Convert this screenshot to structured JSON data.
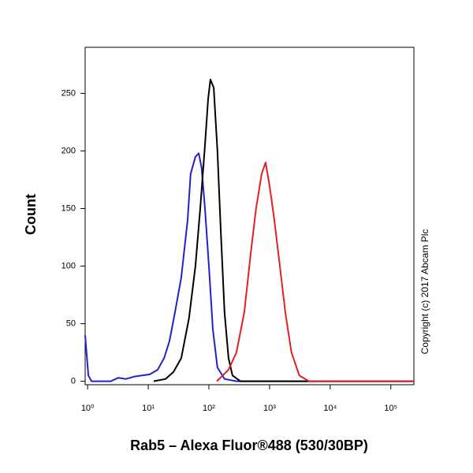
{
  "chart_data": {
    "type": "line",
    "x_label": "Rab5 – Alexa Fluor®488 (530/30BP)",
    "y_label": "Count",
    "copyright": "Copyright (c) 2017 Abcam Plc",
    "x_log": true,
    "xlim": [
      0.91,
      240000
    ],
    "ylim": [
      -3,
      290
    ],
    "xticks": [
      {
        "value": 1,
        "label": "10⁰"
      },
      {
        "value": 10,
        "label": "10¹"
      },
      {
        "value": 100,
        "label": "10²"
      },
      {
        "value": 1000,
        "label": "10³"
      },
      {
        "value": 10000,
        "label": "10⁴"
      },
      {
        "value": 100000,
        "label": "10⁵"
      }
    ],
    "yticks": [
      0,
      50,
      100,
      150,
      200,
      250
    ],
    "series": [
      {
        "color": "#2222cc",
        "x": [
          0.91,
          1.03,
          1.16,
          2.4,
          3.2,
          4.3,
          5.8,
          7.9,
          10.6,
          14.3,
          18.2,
          22.4,
          27.6,
          35,
          44.6,
          50,
          60,
          68,
          76,
          86,
          100,
          116,
          138,
          181,
          284,
          240000
        ],
        "values": [
          40,
          5,
          0,
          0,
          3,
          2,
          4,
          5,
          6,
          10,
          20,
          35,
          60,
          90,
          140,
          180,
          195,
          198,
          185,
          150,
          100,
          45,
          12,
          2,
          0,
          0
        ]
      },
      {
        "color": "#000000",
        "x": [
          12.3,
          19.3,
          26,
          35,
          47,
          60,
          72,
          86,
          97,
          106,
          120,
          138,
          157,
          181,
          211,
          245,
          330,
          240000
        ],
        "values": [
          0,
          2,
          8,
          20,
          55,
          100,
          150,
          205,
          245,
          262,
          255,
          200,
          130,
          60,
          20,
          5,
          0,
          0
        ]
      },
      {
        "color": "#dd2222",
        "x": [
          135,
          211,
          284,
          384,
          487,
          600,
          740,
          860,
          1000,
          1200,
          1480,
          1820,
          2300,
          3100,
          4470,
          240000
        ],
        "values": [
          0,
          10,
          25,
          60,
          110,
          150,
          180,
          190,
          170,
          140,
          100,
          60,
          25,
          5,
          0,
          0
        ]
      }
    ]
  }
}
